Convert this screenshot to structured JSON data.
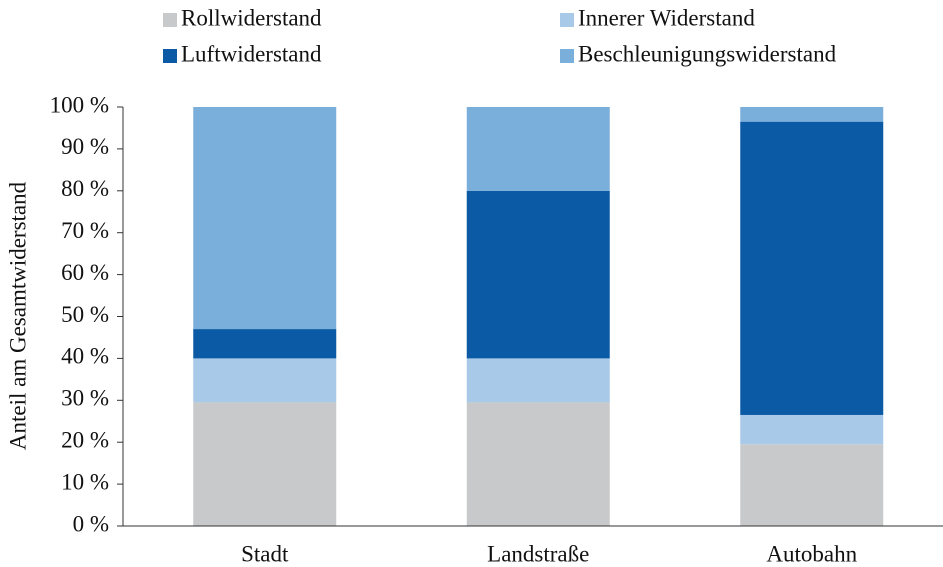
{
  "chart_data": {
    "type": "stacked_bar",
    "ylabel": "Anteil am Gesamtwiderstand",
    "categories": [
      "Stadt",
      "Landstraße",
      "Autobahn"
    ],
    "series": [
      {
        "name": "Rollwiderstand",
        "color": "#c8c9cb",
        "values": [
          29.5,
          29.5,
          19.5
        ]
      },
      {
        "name": "Innerer Widerstand",
        "color": "#a8cae8",
        "values": [
          10.5,
          10.5,
          7
        ]
      },
      {
        "name": "Luftwiderstand",
        "color": "#0b5aa5",
        "values": [
          7,
          40,
          70
        ]
      },
      {
        "name": "Beschleunigungswiderstand",
        "color": "#7aaedb",
        "values": [
          53,
          20,
          3.5
        ]
      }
    ],
    "ylim": [
      0,
      100
    ],
    "yticks": [
      {
        "value": 0,
        "label": "0 %"
      },
      {
        "value": 10,
        "label": "10 %"
      },
      {
        "value": 20,
        "label": "20 %"
      },
      {
        "value": 30,
        "label": "30 %"
      },
      {
        "value": 40,
        "label": "40 %"
      },
      {
        "value": 50,
        "label": "50 %"
      },
      {
        "value": 60,
        "label": "60 %"
      },
      {
        "value": 70,
        "label": "70 %"
      },
      {
        "value": 80,
        "label": "80 %"
      },
      {
        "value": 90,
        "label": "90 %"
      },
      {
        "value": 100,
        "label": "100 %"
      }
    ],
    "grid": false
  }
}
